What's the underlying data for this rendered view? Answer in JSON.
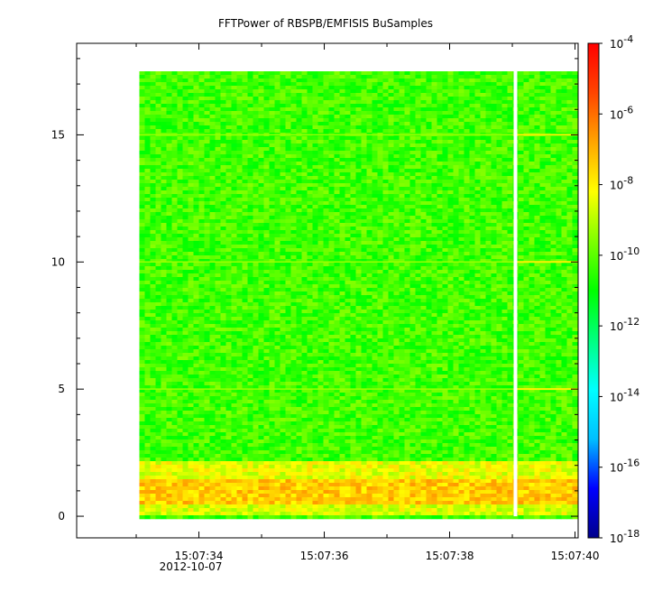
{
  "chart_data": {
    "type": "heatmap",
    "title": "FFTPower of RBSPB/EMFISIS  BuSamples",
    "xlabel": "",
    "ylabel": "",
    "x_ticks": [
      {
        "label": "15:07:34",
        "sub": "2012-10-07",
        "t": 34
      },
      {
        "label": "15:07:36",
        "sub": "",
        "t": 36
      },
      {
        "label": "15:07:38",
        "sub": "",
        "t": 38
      },
      {
        "label": "15:07:40",
        "sub": "",
        "t": 40
      }
    ],
    "x_minor_ticks": [
      33,
      35,
      37,
      39
    ],
    "xlim": [
      32.05,
      40.05
    ],
    "y_ticks": [
      0,
      5,
      10,
      15
    ],
    "ylim": [
      -0.85,
      18.6
    ],
    "data_extent": {
      "t_start": 33.05,
      "t_end": 40.05,
      "freq_max": 17.5
    },
    "gap": {
      "t": 39.05
    },
    "spectrum_levels": [
      {
        "freq": [
          0,
          0.5
        ],
        "log_power": -8.6
      },
      {
        "freq": [
          0.5,
          1.5
        ],
        "log_power": -7.4
      },
      {
        "freq": [
          1.5,
          2.2
        ],
        "log_power": -8.4
      },
      {
        "freq": [
          2.2,
          17.5
        ],
        "log_power": -10.3
      }
    ],
    "harmonic_lines": [
      5,
      10,
      15
    ],
    "colorbar": {
      "scale": "log",
      "range": [
        -18,
        -4
      ],
      "ticks": [
        -4,
        -6,
        -8,
        -10,
        -12,
        -14,
        -16,
        -18
      ],
      "base_label": "10",
      "colors": [
        "#00008b",
        "#0000ff",
        "#00bfff",
        "#00ffff",
        "#00ff7f",
        "#00ff00",
        "#7fff00",
        "#ffff00",
        "#ffa500",
        "#ff4500",
        "#ff0000"
      ]
    }
  }
}
